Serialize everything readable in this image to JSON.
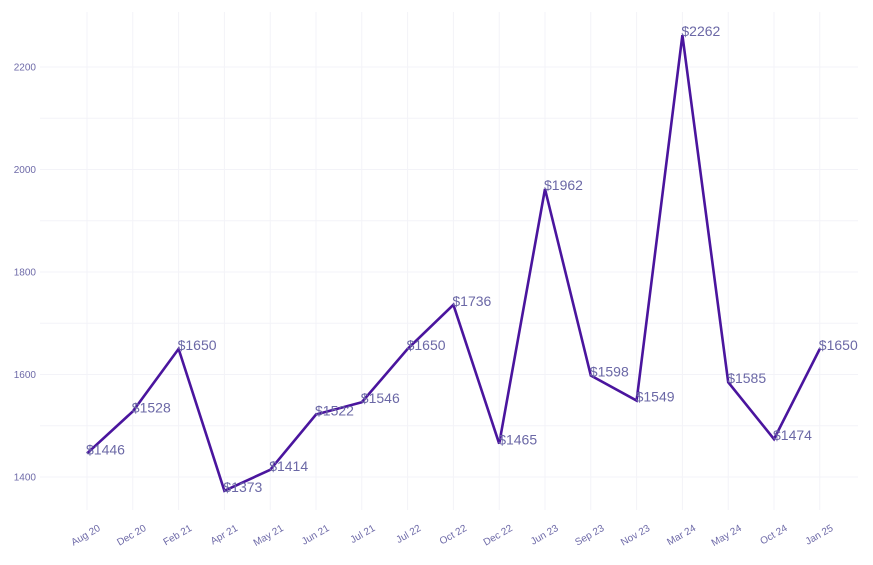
{
  "chart_data": {
    "type": "line",
    "title": "",
    "xlabel": "",
    "ylabel": "",
    "categories": [
      "Aug 20",
      "Dec 20",
      "Feb 21",
      "Apr 21",
      "May 21",
      "Jun 21",
      "Jul 21",
      "Jul 22",
      "Oct 22",
      "Dec 22",
      "Jun 23",
      "Sep 23",
      "Nov 23",
      "Mar 24",
      "May 24",
      "Oct 24",
      "Jan 25"
    ],
    "values": [
      1446,
      1528,
      1650,
      1373,
      1414,
      1522,
      1546,
      1650,
      1736,
      1465,
      1962,
      1598,
      1549,
      2262,
      1585,
      1474,
      1650
    ],
    "data_labels": [
      "$1446",
      "$1528",
      "$1650",
      "$1373",
      "$1414",
      "$1522",
      "$1546",
      "$1650",
      "$1736",
      "$1465",
      "$1962",
      "$1598",
      "$1549",
      "$2262",
      "$1585",
      "$1474",
      "$1650"
    ],
    "yticks": [
      1400,
      1600,
      1800,
      2000,
      2200
    ],
    "ytick_labels": [
      "1400",
      "1600",
      "1800",
      "2000",
      "2200"
    ],
    "ylim": [
      1330,
      2290
    ],
    "grid": true,
    "legend": "none",
    "colors": {
      "line": "#4a159e",
      "label": "#6b68a6",
      "tick": "#6e6aa8",
      "grid": "#f3f3f8"
    }
  }
}
